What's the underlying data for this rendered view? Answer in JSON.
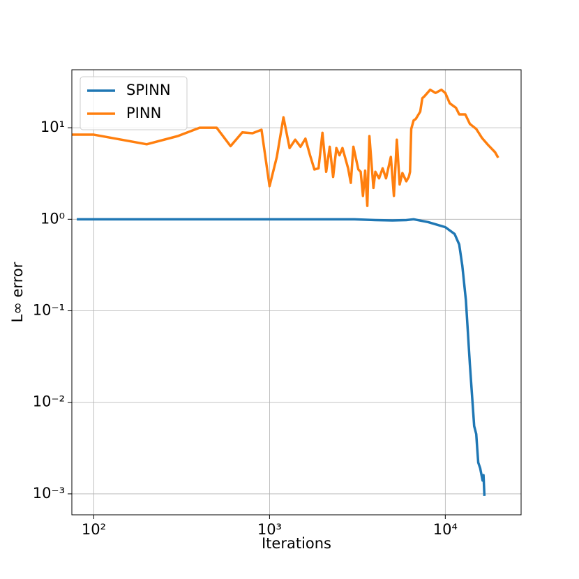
{
  "chart_data": {
    "type": "line",
    "xlabel": "Iterations",
    "ylabel": "L∞ error",
    "xscale": "log",
    "yscale": "log",
    "grid": true,
    "legend": "upper left",
    "xlim": [
      75,
      27000
    ],
    "ylim": [
      0.00059,
      43
    ],
    "xticks": [
      {
        "value": 100,
        "label": "10²"
      },
      {
        "value": 1000,
        "label": "10³"
      },
      {
        "value": 10000,
        "label": "10⁴"
      }
    ],
    "yticks": [
      {
        "value": 0.001,
        "label": "10⁻³"
      },
      {
        "value": 0.01,
        "label": "10⁻²"
      },
      {
        "value": 0.1,
        "label": "10⁻¹"
      },
      {
        "value": 1,
        "label": "10⁰"
      },
      {
        "value": 10,
        "label": "10¹"
      }
    ],
    "series": [
      {
        "name": "SPINN",
        "color": "#1f77b4",
        "x": [
          80,
          100,
          200,
          500,
          1000,
          2000,
          3000,
          4000,
          5000,
          6000,
          6600,
          8000,
          10000,
          11300,
          12000,
          12500,
          13100,
          13800,
          14600,
          15000,
          15200,
          15400,
          15800,
          16300,
          16500,
          16700
        ],
        "values": [
          1,
          1,
          1,
          1,
          1,
          1,
          1,
          0.98,
          0.97,
          0.98,
          1.0,
          0.93,
          0.82,
          0.69,
          0.53,
          0.31,
          0.13,
          0.026,
          0.0055,
          0.0045,
          0.0031,
          0.0022,
          0.0019,
          0.0014,
          0.0016,
          0.00095
        ]
      },
      {
        "name": "PINN",
        "color": "#ff7f0e",
        "x": [
          75,
          100,
          200,
          300,
          400,
          500,
          600,
          700,
          800,
          900,
          1000,
          1100,
          1200,
          1300,
          1400,
          1500,
          1600,
          1700,
          1800,
          1900,
          2000,
          2100,
          2200,
          2300,
          2400,
          2500,
          2600,
          2800,
          2900,
          3000,
          3200,
          3300,
          3400,
          3500,
          3600,
          3700,
          3900,
          4000,
          4200,
          4400,
          4600,
          4900,
          5100,
          5300,
          5500,
          5700,
          6000,
          6200,
          6300,
          6400,
          6600,
          6800,
          7200,
          7400,
          7600,
          8200,
          8800,
          9500,
          10000,
          10600,
          11500,
          12000,
          13000,
          13800,
          15000,
          16200,
          17500,
          19200,
          20000
        ],
        "values": [
          8.4,
          8.4,
          6.6,
          8.1,
          10,
          10,
          6.3,
          8.9,
          8.7,
          9.5,
          2.3,
          4.8,
          13,
          6.0,
          7.4,
          6.2,
          7.6,
          5.0,
          3.5,
          3.6,
          8.8,
          3.3,
          6.2,
          2.9,
          6.0,
          5.0,
          6.0,
          3.6,
          2.5,
          6.2,
          3.5,
          3.3,
          1.8,
          3.4,
          1.4,
          8.1,
          2.2,
          3.3,
          2.8,
          3.6,
          2.8,
          4.8,
          1.8,
          7.4,
          2.4,
          3.2,
          2.6,
          2.9,
          3.3,
          9.7,
          12,
          12.5,
          15,
          21,
          22,
          26,
          24,
          26,
          24,
          18.5,
          16.5,
          14,
          14,
          11,
          9.7,
          7.7,
          6.5,
          5.4,
          4.7
        ]
      }
    ]
  }
}
